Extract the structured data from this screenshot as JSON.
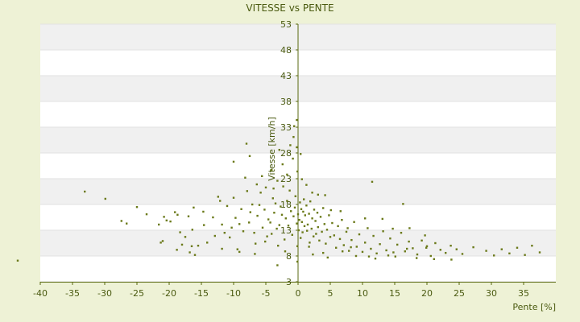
{
  "chart_data": {
    "type": "scatter",
    "title": "VITESSE vs PENTE",
    "xlabel": "Pente [%]",
    "ylabel": "Vitesse [km/h]",
    "xlim": [
      -40,
      40
    ],
    "ylim": [
      3,
      53
    ],
    "xticks": [
      -40,
      -35,
      -30,
      -25,
      -20,
      -15,
      -10,
      -5,
      0,
      5,
      10,
      15,
      20,
      25,
      30,
      35
    ],
    "yticks": [
      3,
      8,
      13,
      18,
      23,
      28,
      33,
      38,
      43,
      48,
      53
    ],
    "grid": "alternating horizontal bands",
    "colors": {
      "point": "#6b7a1a",
      "band_alt": "#f0f0f0",
      "band": "#ffffff",
      "axis": "#5a6a10"
    },
    "points": [
      [
        -43.5,
        7.1
      ],
      [
        -33.1,
        20.5
      ],
      [
        -29.9,
        19.1
      ],
      [
        -27.4,
        14.8
      ],
      [
        -26.6,
        14.3
      ],
      [
        -25.0,
        17.5
      ],
      [
        -23.5,
        16.1
      ],
      [
        -21.6,
        14.1
      ],
      [
        -21.0,
        10.9
      ],
      [
        -20.8,
        15.6
      ],
      [
        -20.4,
        14.9
      ],
      [
        -19.8,
        14.7
      ],
      [
        -19.1,
        16.5
      ],
      [
        -18.7,
        16.0
      ],
      [
        -18.3,
        12.6
      ],
      [
        -18.0,
        10.2
      ],
      [
        -17.5,
        11.7
      ],
      [
        -17.0,
        15.7
      ],
      [
        -16.8,
        8.7
      ],
      [
        -16.5,
        9.9
      ],
      [
        -16.4,
        13.1
      ],
      [
        -16.2,
        17.4
      ],
      [
        -16.0,
        8.2
      ],
      [
        -14.7,
        16.6
      ],
      [
        -14.1,
        10.6
      ],
      [
        -13.2,
        15.5
      ],
      [
        -12.9,
        11.9
      ],
      [
        -12.4,
        19.5
      ],
      [
        -12.1,
        18.7
      ],
      [
        -11.8,
        14.1
      ],
      [
        -11.4,
        12.5
      ],
      [
        -11.0,
        17.7
      ],
      [
        -10.6,
        11.6
      ],
      [
        -10.3,
        13.5
      ],
      [
        -10.0,
        19.3
      ],
      [
        -9.7,
        15.4
      ],
      [
        -9.4,
        9.3
      ],
      [
        -9.1,
        14.2
      ],
      [
        -8.8,
        17.1
      ],
      [
        -8.5,
        12.8
      ],
      [
        -8.2,
        23.2
      ],
      [
        -7.9,
        20.6
      ],
      [
        -7.6,
        14.5
      ],
      [
        -7.4,
        16.5
      ],
      [
        -7.1,
        18.0
      ],
      [
        -6.8,
        12.5
      ],
      [
        -6.6,
        10.4
      ],
      [
        -6.3,
        15.8
      ],
      [
        -6.0,
        17.9
      ],
      [
        -5.8,
        20.3
      ],
      [
        -5.5,
        13.5
      ],
      [
        -5.2,
        17.0
      ],
      [
        -5.0,
        21.3
      ],
      [
        -4.8,
        11.8
      ],
      [
        -4.6,
        15.1
      ],
      [
        -4.3,
        14.5
      ],
      [
        -4.1,
        12.3
      ],
      [
        -3.9,
        19.2
      ],
      [
        -3.7,
        16.4
      ],
      [
        -3.5,
        18.2
      ],
      [
        -3.3,
        13.3
      ],
      [
        -3.1,
        10.0
      ],
      [
        -2.9,
        14.0
      ],
      [
        -2.7,
        17.6
      ],
      [
        -2.5,
        16.0
      ],
      [
        -2.3,
        21.5
      ],
      [
        -2.1,
        11.2
      ],
      [
        -1.9,
        15.3
      ],
      [
        -1.7,
        18.7
      ],
      [
        -1.5,
        13.9
      ],
      [
        -1.3,
        20.7
      ],
      [
        -1.1,
        16.7
      ],
      [
        -0.9,
        12.1
      ],
      [
        -0.7,
        15.7
      ],
      [
        -0.5,
        17.4
      ],
      [
        -0.4,
        19.6
      ],
      [
        -0.2,
        14.3
      ],
      [
        -0.1,
        9.9
      ],
      [
        0.0,
        16.1
      ],
      [
        0.1,
        13.0
      ],
      [
        0.2,
        15.0
      ],
      [
        0.3,
        18.4
      ],
      [
        0.4,
        11.5
      ],
      [
        0.5,
        17.1
      ],
      [
        0.6,
        14.6
      ],
      [
        0.7,
        12.6
      ],
      [
        0.8,
        16.6
      ],
      [
        0.9,
        19.0
      ],
      [
        1.0,
        13.8
      ],
      [
        1.1,
        15.9
      ],
      [
        1.3,
        17.8
      ],
      [
        1.4,
        12.9
      ],
      [
        1.5,
        14.1
      ],
      [
        1.7,
        16.2
      ],
      [
        1.8,
        10.6
      ],
      [
        1.9,
        18.6
      ],
      [
        2.1,
        13.3
      ],
      [
        2.2,
        15.3
      ],
      [
        2.4,
        11.8
      ],
      [
        2.5,
        17.0
      ],
      [
        2.7,
        14.8
      ],
      [
        2.8,
        12.3
      ],
      [
        3.0,
        16.4
      ],
      [
        3.1,
        13.6
      ],
      [
        3.3,
        11.0
      ],
      [
        3.5,
        15.6
      ],
      [
        3.7,
        12.7
      ],
      [
        3.9,
        17.3
      ],
      [
        4.1,
        14.2
      ],
      [
        4.3,
        10.4
      ],
      [
        4.5,
        13.1
      ],
      [
        4.8,
        15.9
      ],
      [
        5.0,
        11.7
      ],
      [
        5.3,
        14.4
      ],
      [
        5.6,
        12.0
      ],
      [
        5.9,
        9.6
      ],
      [
        6.2,
        13.8
      ],
      [
        6.5,
        11.3
      ],
      [
        6.8,
        15.0
      ],
      [
        7.1,
        10.1
      ],
      [
        7.5,
        12.7
      ],
      [
        7.9,
        9.0
      ],
      [
        8.3,
        11.1
      ],
      [
        8.7,
        14.6
      ],
      [
        9.1,
        9.8
      ],
      [
        9.5,
        12.2
      ],
      [
        10.0,
        8.8
      ],
      [
        10.4,
        10.6
      ],
      [
        10.8,
        13.4
      ],
      [
        11.3,
        9.4
      ],
      [
        11.7,
        11.9
      ],
      [
        12.2,
        8.5
      ],
      [
        12.7,
        10.3
      ],
      [
        13.2,
        12.8
      ],
      [
        13.7,
        9.1
      ],
      [
        14.3,
        11.4
      ],
      [
        14.8,
        8.7
      ],
      [
        15.4,
        10.2
      ],
      [
        16.0,
        12.5
      ],
      [
        16.6,
        8.9
      ],
      [
        17.2,
        10.8
      ],
      [
        17.8,
        9.5
      ],
      [
        18.5,
        8.3
      ],
      [
        19.2,
        11.0
      ],
      [
        19.9,
        9.6
      ],
      [
        20.6,
        8.0
      ],
      [
        21.3,
        10.5
      ],
      [
        22.1,
        9.2
      ],
      [
        22.9,
        8.6
      ],
      [
        23.7,
        10.0
      ],
      [
        24.6,
        9.3
      ],
      [
        25.5,
        8.4
      ],
      [
        27.2,
        9.7
      ],
      [
        29.2,
        9.0
      ],
      [
        30.4,
        8.1
      ],
      [
        31.6,
        9.3
      ],
      [
        32.8,
        8.5
      ],
      [
        34.0,
        9.6
      ],
      [
        35.2,
        8.2
      ],
      [
        36.3,
        10.0
      ],
      [
        37.5,
        8.7
      ],
      [
        -5.6,
        23.5
      ],
      [
        -4.1,
        24.7
      ],
      [
        -3.2,
        22.6
      ],
      [
        -2.4,
        25.8
      ],
      [
        -1.7,
        23.8
      ],
      [
        -0.8,
        26.9
      ],
      [
        -0.1,
        24.4
      ],
      [
        0.6,
        22.9
      ],
      [
        1.3,
        21.8
      ],
      [
        2.2,
        20.3
      ],
      [
        3.1,
        19.9
      ],
      [
        -7.5,
        27.4
      ],
      [
        -10.0,
        26.3
      ],
      [
        -2.9,
        28.6
      ],
      [
        -1.2,
        29.5
      ],
      [
        0.4,
        27.8
      ],
      [
        -0.7,
        31.1
      ],
      [
        -0.6,
        33.2
      ],
      [
        -0.2,
        34.4
      ],
      [
        -8.0,
        29.8
      ],
      [
        -3.8,
        21.1
      ],
      [
        -6.4,
        21.9
      ],
      [
        -0.2,
        29.1
      ],
      [
        11.5,
        22.4
      ],
      [
        16.3,
        18.1
      ],
      [
        13.1,
        15.2
      ],
      [
        14.7,
        13.3
      ],
      [
        6.6,
        16.7
      ],
      [
        4.2,
        19.8
      ],
      [
        5.1,
        16.9
      ],
      [
        7.7,
        13.4
      ],
      [
        10.4,
        15.3
      ],
      [
        17.3,
        13.4
      ],
      [
        19.7,
        12.0
      ],
      [
        -14.6,
        14.0
      ],
      [
        -11.8,
        9.4
      ],
      [
        -9.1,
        8.8
      ],
      [
        -6.7,
        8.4
      ],
      [
        -3.2,
        6.2
      ],
      [
        -0.1,
        6.9
      ],
      [
        2.3,
        8.3
      ],
      [
        4.6,
        7.7
      ],
      [
        6.9,
        8.9
      ],
      [
        9.0,
        8.0
      ],
      [
        12.0,
        7.5
      ],
      [
        15.1,
        7.9
      ],
      [
        18.4,
        7.6
      ],
      [
        21.1,
        7.4
      ],
      [
        23.8,
        7.3
      ],
      [
        -5.1,
        10.8
      ],
      [
        -2.0,
        8.9
      ],
      [
        1.7,
        9.8
      ],
      [
        3.9,
        8.6
      ],
      [
        8.2,
        9.7
      ],
      [
        11.0,
        7.9
      ],
      [
        14.0,
        8.1
      ],
      [
        16.9,
        9.4
      ],
      [
        20.0,
        9.9
      ],
      [
        -21.3,
        10.6
      ],
      [
        -18.8,
        9.2
      ],
      [
        -15.5,
        10.0
      ]
    ]
  }
}
